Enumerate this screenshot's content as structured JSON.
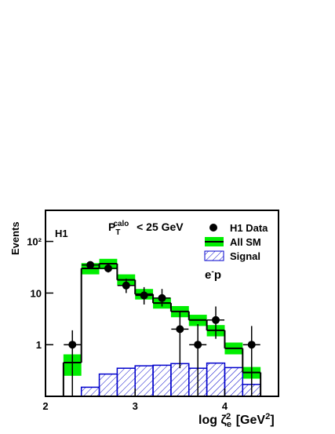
{
  "chart_data": {
    "type": "histogram",
    "experiment": "H1",
    "cut": [
      "P",
      "T",
      "calo",
      " < 25 GeV"
    ],
    "y_label": "Events",
    "x_label": [
      "log ζ",
      "e",
      "2",
      " [GeV",
      "2",
      "]"
    ],
    "xlim": [
      2,
      4.6
    ],
    "xticks": [
      2,
      3,
      4
    ],
    "ylim": [
      0.1,
      400
    ],
    "log_y": true,
    "yticks": [
      1,
      10,
      {
        "value": 100,
        "label": "10²"
      }
    ],
    "bins": [
      2.2,
      2.4,
      2.6,
      2.8,
      3.0,
      3.2,
      3.4,
      3.6,
      3.8,
      4.0,
      4.2,
      4.4
    ],
    "series": [
      {
        "name": "All SM",
        "color": "#00ee00",
        "values": [
          0.45,
          30,
          37,
          18,
          9.5,
          6.4,
          4.4,
          3,
          1.9,
          0.85,
          0.29
        ],
        "band_low": [
          0.25,
          23,
          29,
          14,
          7.5,
          5,
          3.4,
          2.3,
          1.45,
          0.65,
          0.22
        ],
        "band_high": [
          0.65,
          38,
          46,
          23,
          12,
          8,
          5.6,
          3.8,
          2.4,
          1.1,
          0.37
        ]
      },
      {
        "name": "Signal",
        "color": "#0000cc",
        "values": [
          null,
          0.15,
          0.27,
          0.35,
          0.39,
          0.4,
          0.43,
          0.35,
          0.44,
          0.36,
          0.17
        ]
      }
    ],
    "data": {
      "name": "H1 Data",
      "color": "#000000",
      "x": [
        2.3,
        2.5,
        2.7,
        2.9,
        3.1,
        3.3,
        3.5,
        3.7,
        3.9,
        4.3
      ],
      "values": [
        1,
        35,
        30,
        14,
        9,
        8,
        2,
        1,
        3,
        1
      ],
      "low": [
        0.1,
        29,
        25,
        10,
        6,
        5.5,
        0.35,
        0.1,
        1.3,
        0.1
      ],
      "high": [
        1.9,
        41,
        36,
        19,
        13,
        12,
        4.5,
        2.5,
        5.5,
        2.3
      ]
    },
    "beam": [
      "e",
      "-",
      "p"
    ]
  }
}
